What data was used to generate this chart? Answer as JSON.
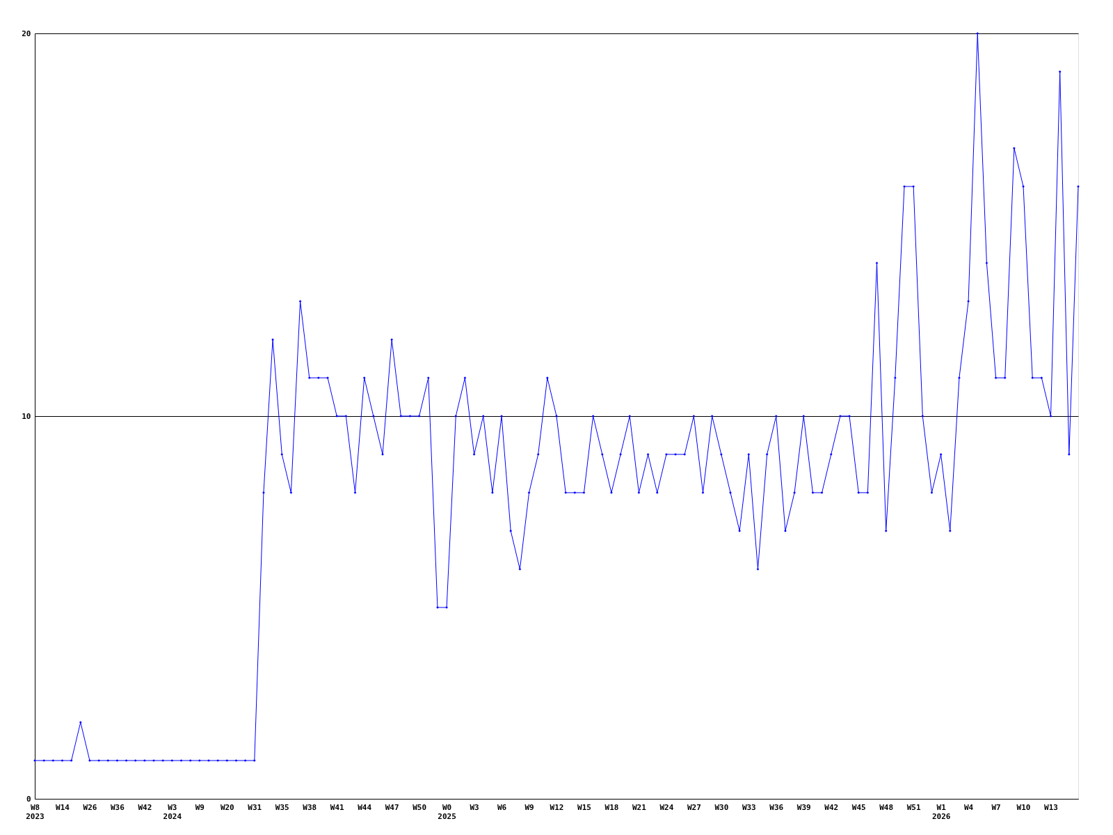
{
  "chart_data": {
    "type": "line",
    "categories": [
      "W8\n2023",
      null,
      null,
      "W14",
      null,
      null,
      "W26",
      null,
      null,
      "W36",
      null,
      null,
      "W42",
      null,
      null,
      "W3\n2024",
      null,
      null,
      "W9",
      null,
      null,
      "W20",
      null,
      null,
      "W31",
      null,
      null,
      "W35",
      null,
      null,
      "W38",
      null,
      null,
      "W41",
      null,
      null,
      "W44",
      null,
      null,
      "W47",
      null,
      null,
      "W50",
      null,
      null,
      "W0\n2025",
      null,
      null,
      "W3",
      null,
      null,
      "W6",
      null,
      null,
      "W9",
      null,
      null,
      "W12",
      null,
      null,
      "W15",
      null,
      null,
      "W18",
      null,
      null,
      "W21",
      null,
      null,
      "W24",
      null,
      null,
      "W27",
      null,
      null,
      "W30",
      null,
      null,
      "W33",
      null,
      null,
      "W36",
      null,
      null,
      "W39",
      null,
      null,
      "W42",
      null,
      null,
      "W45",
      null,
      null,
      "W48",
      null,
      null,
      "W51",
      null,
      null,
      "W1\n2026",
      null,
      null,
      "W4",
      null,
      null,
      "W7",
      null,
      null,
      "W10",
      null,
      null,
      "W13",
      null,
      null,
      null
    ],
    "series": [
      {
        "color": "#0000ff",
        "values": [
          1,
          1,
          1,
          1,
          1,
          2,
          1,
          1,
          1,
          1,
          1,
          1,
          1,
          1,
          1,
          1,
          1,
          1,
          1,
          1,
          1,
          1,
          1,
          1,
          1,
          8,
          12,
          9,
          8,
          13,
          11,
          11,
          11,
          10,
          10,
          8,
          11,
          10,
          9,
          12,
          10,
          10,
          10,
          11,
          5,
          5,
          10,
          11,
          9,
          10,
          8,
          10,
          7,
          6,
          8,
          9,
          11,
          10,
          8,
          8,
          8,
          10,
          9,
          8,
          9,
          10,
          8,
          9,
          8,
          9,
          9,
          9,
          10,
          8,
          10,
          9,
          8,
          7,
          9,
          6,
          9,
          10,
          7,
          8,
          10,
          8,
          8,
          9,
          10,
          10,
          8,
          8,
          14,
          7,
          11,
          16,
          16,
          10,
          8,
          9,
          7,
          11,
          13,
          20,
          14,
          11,
          11,
          17,
          16,
          11,
          11,
          10,
          19,
          9,
          16
        ]
      }
    ],
    "ylim": [
      0,
      20
    ],
    "yticks": [
      0,
      10,
      20
    ],
    "grid": "y",
    "marker": "diamond",
    "line_style": "solid"
  }
}
